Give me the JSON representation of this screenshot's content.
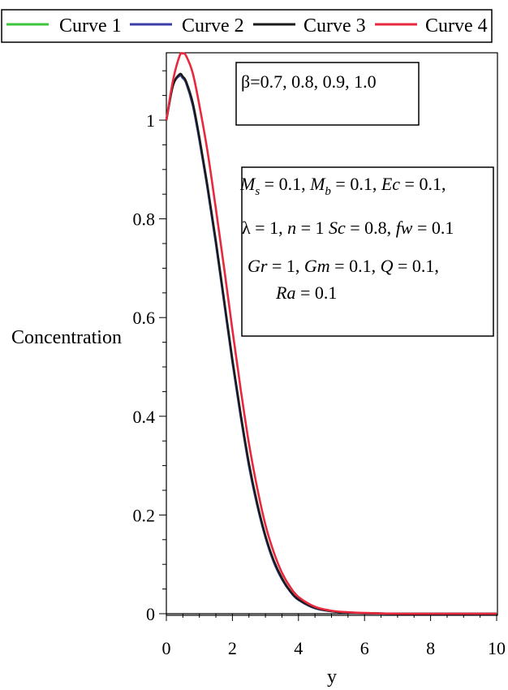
{
  "chart_data": {
    "type": "line",
    "title": "",
    "xlabel": "y",
    "ylabel": "Concentration",
    "xlim": [
      0,
      10
    ],
    "ylim": [
      0,
      1.15
    ],
    "grid": false,
    "legend_position": "top",
    "x_ticks": [
      "0",
      "2",
      "4",
      "6",
      "8",
      "10"
    ],
    "y_ticks": [
      "0",
      "0.2",
      "0.4",
      "0.6",
      "0.8",
      "1"
    ],
    "x": [
      0,
      0.2,
      0.4,
      0.5,
      0.6,
      0.8,
      1.0,
      1.25,
      1.5,
      1.75,
      2.0,
      2.25,
      2.5,
      2.75,
      3.0,
      3.25,
      3.5,
      3.75,
      4.0,
      4.5,
      5.0,
      5.5,
      6.0,
      7.0,
      8.0,
      9.0,
      10.0
    ],
    "series": [
      {
        "name": "Curve 1",
        "color": "#3cc43c",
        "values": [
          1.0,
          1.07,
          1.09,
          1.085,
          1.075,
          1.03,
          0.96,
          0.86,
          0.75,
          0.63,
          0.51,
          0.4,
          0.3,
          0.22,
          0.155,
          0.105,
          0.07,
          0.045,
          0.028,
          0.011,
          0.005,
          0.002,
          0.001,
          0.0,
          0.0,
          0.0,
          0.0
        ]
      },
      {
        "name": "Curve 2",
        "color": "#3c3ca8",
        "values": [
          1.0,
          1.07,
          1.09,
          1.085,
          1.075,
          1.03,
          0.96,
          0.86,
          0.75,
          0.63,
          0.51,
          0.4,
          0.3,
          0.22,
          0.155,
          0.105,
          0.07,
          0.045,
          0.028,
          0.011,
          0.005,
          0.002,
          0.001,
          0.0,
          0.0,
          0.0,
          0.0
        ]
      },
      {
        "name": "Curve 3",
        "color": "#1a1a1a",
        "values": [
          1.0,
          1.07,
          1.093,
          1.088,
          1.078,
          1.035,
          0.965,
          0.865,
          0.755,
          0.635,
          0.515,
          0.405,
          0.305,
          0.224,
          0.158,
          0.108,
          0.072,
          0.046,
          0.029,
          0.012,
          0.005,
          0.002,
          0.001,
          0.0,
          0.0,
          0.0,
          0.0
        ]
      },
      {
        "name": "Curve 4",
        "color": "#e8283c",
        "values": [
          1.0,
          1.08,
          1.13,
          1.135,
          1.13,
          1.095,
          1.03,
          0.935,
          0.82,
          0.7,
          0.575,
          0.455,
          0.345,
          0.255,
          0.18,
          0.125,
          0.083,
          0.054,
          0.034,
          0.014,
          0.006,
          0.003,
          0.0015,
          0.0,
          0.0,
          0.0,
          0.0
        ]
      }
    ],
    "annotations": [
      {
        "lines": [
          "β=0.7, 0.8, 0.9, 1.0"
        ]
      },
      {
        "lines": [
          "M_s = 0.1, M_b = 0.1, Ec = 0.1,",
          "λ = 1, n = 1 Sc = 0.8, fw = 0.1",
          "Gr = 1, Gm = 0.1, Q = 0.1,",
          "Ra = 0.1"
        ]
      }
    ]
  }
}
